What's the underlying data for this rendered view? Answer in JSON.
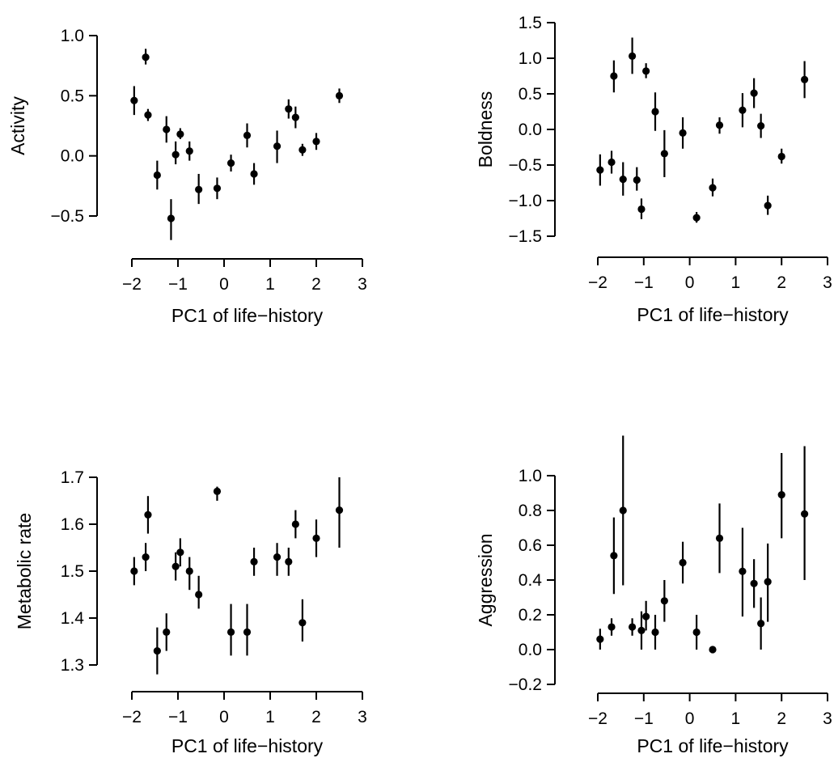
{
  "chart_data": [
    {
      "type": "scatter",
      "title": "",
      "xlabel": "PC1 of life−history",
      "ylabel": "Activity",
      "xlim": [
        -2,
        3
      ],
      "ylim": [
        -0.5,
        1.0
      ],
      "xticks": [
        "−2",
        "−1",
        "0",
        "1",
        "2",
        "3"
      ],
      "yticks": [
        "−0.5",
        "0.0",
        "0.5",
        "1.0"
      ],
      "grid": false,
      "points": [
        {
          "x": -1.95,
          "y": 0.46,
          "lo": 0.34,
          "hi": 0.58
        },
        {
          "x": -1.7,
          "y": 0.82,
          "lo": 0.76,
          "hi": 0.89
        },
        {
          "x": -1.65,
          "y": 0.34,
          "lo": 0.29,
          "hi": 0.39
        },
        {
          "x": -1.45,
          "y": -0.16,
          "lo": -0.28,
          "hi": -0.04
        },
        {
          "x": -1.25,
          "y": 0.22,
          "lo": 0.11,
          "hi": 0.33
        },
        {
          "x": -1.15,
          "y": -0.52,
          "lo": -0.7,
          "hi": -0.36
        },
        {
          "x": -1.05,
          "y": 0.01,
          "lo": -0.07,
          "hi": 0.12
        },
        {
          "x": -0.95,
          "y": 0.18,
          "lo": 0.14,
          "hi": 0.23
        },
        {
          "x": -0.75,
          "y": 0.04,
          "lo": -0.04,
          "hi": 0.12
        },
        {
          "x": -0.55,
          "y": -0.28,
          "lo": -0.4,
          "hi": -0.15
        },
        {
          "x": -0.15,
          "y": -0.27,
          "lo": -0.36,
          "hi": -0.18
        },
        {
          "x": 0.15,
          "y": -0.06,
          "lo": -0.13,
          "hi": 0.01
        },
        {
          "x": 0.5,
          "y": 0.17,
          "lo": 0.07,
          "hi": 0.27
        },
        {
          "x": 0.65,
          "y": -0.15,
          "lo": -0.24,
          "hi": -0.06
        },
        {
          "x": 1.15,
          "y": 0.08,
          "lo": -0.06,
          "hi": 0.21
        },
        {
          "x": 1.4,
          "y": 0.39,
          "lo": 0.31,
          "hi": 0.47
        },
        {
          "x": 1.55,
          "y": 0.32,
          "lo": 0.23,
          "hi": 0.41
        },
        {
          "x": 1.7,
          "y": 0.05,
          "lo": 0.0,
          "hi": 0.1
        },
        {
          "x": 2.0,
          "y": 0.12,
          "lo": 0.05,
          "hi": 0.19
        },
        {
          "x": 2.5,
          "y": 0.5,
          "lo": 0.44,
          "hi": 0.56
        }
      ]
    },
    {
      "type": "scatter",
      "title": "",
      "xlabel": "PC1 of life−history",
      "ylabel": "Boldness",
      "xlim": [
        -2,
        3
      ],
      "ylim": [
        -1.5,
        1.5
      ],
      "xticks": [
        "−2",
        "−1",
        "0",
        "1",
        "2",
        "3"
      ],
      "yticks": [
        "−1.5",
        "−1.0",
        "−0.5",
        "0.0",
        "0.5",
        "1.0",
        "1.5"
      ],
      "grid": false,
      "points": [
        {
          "x": -1.95,
          "y": -0.57,
          "lo": -0.79,
          "hi": -0.35
        },
        {
          "x": -1.7,
          "y": -0.46,
          "lo": -0.62,
          "hi": -0.3
        },
        {
          "x": -1.65,
          "y": 0.75,
          "lo": 0.52,
          "hi": 0.97
        },
        {
          "x": -1.45,
          "y": -0.7,
          "lo": -0.93,
          "hi": -0.46
        },
        {
          "x": -1.25,
          "y": 1.03,
          "lo": 0.78,
          "hi": 1.29
        },
        {
          "x": -1.15,
          "y": -0.71,
          "lo": -0.86,
          "hi": -0.53
        },
        {
          "x": -1.05,
          "y": -1.12,
          "lo": -1.26,
          "hi": -0.97
        },
        {
          "x": -0.95,
          "y": 0.82,
          "lo": 0.72,
          "hi": 0.93
        },
        {
          "x": -0.75,
          "y": 0.25,
          "lo": -0.02,
          "hi": 0.52
        },
        {
          "x": -0.55,
          "y": -0.34,
          "lo": -0.67,
          "hi": -0.01
        },
        {
          "x": -0.15,
          "y": -0.05,
          "lo": -0.27,
          "hi": 0.17
        },
        {
          "x": 0.15,
          "y": -1.24,
          "lo": -1.31,
          "hi": -1.16
        },
        {
          "x": 0.5,
          "y": -0.82,
          "lo": -0.94,
          "hi": -0.69
        },
        {
          "x": 0.65,
          "y": 0.06,
          "lo": -0.06,
          "hi": 0.17
        },
        {
          "x": 1.15,
          "y": 0.27,
          "lo": 0.03,
          "hi": 0.51
        },
        {
          "x": 1.4,
          "y": 0.51,
          "lo": 0.3,
          "hi": 0.72
        },
        {
          "x": 1.55,
          "y": 0.05,
          "lo": -0.12,
          "hi": 0.22
        },
        {
          "x": 1.7,
          "y": -1.07,
          "lo": -1.2,
          "hi": -0.93
        },
        {
          "x": 2.0,
          "y": -0.38,
          "lo": -0.48,
          "hi": -0.27
        },
        {
          "x": 2.5,
          "y": 0.7,
          "lo": 0.44,
          "hi": 0.96
        }
      ]
    },
    {
      "type": "scatter",
      "title": "",
      "xlabel": "PC1 of life−history",
      "ylabel": "Metabolic rate",
      "xlim": [
        -2,
        3
      ],
      "ylim": [
        1.3,
        1.7
      ],
      "xticks": [
        "−2",
        "−1",
        "0",
        "1",
        "2",
        "3"
      ],
      "yticks": [
        "1.3",
        "1.4",
        "1.5",
        "1.6",
        "1.7"
      ],
      "grid": false,
      "points": [
        {
          "x": -1.95,
          "y": 1.5,
          "lo": 1.47,
          "hi": 1.53
        },
        {
          "x": -1.7,
          "y": 1.53,
          "lo": 1.5,
          "hi": 1.56
        },
        {
          "x": -1.65,
          "y": 1.62,
          "lo": 1.58,
          "hi": 1.66
        },
        {
          "x": -1.45,
          "y": 1.33,
          "lo": 1.28,
          "hi": 1.38
        },
        {
          "x": -1.25,
          "y": 1.37,
          "lo": 1.33,
          "hi": 1.41
        },
        {
          "x": -1.05,
          "y": 1.51,
          "lo": 1.48,
          "hi": 1.54
        },
        {
          "x": -0.95,
          "y": 1.54,
          "lo": 1.51,
          "hi": 1.57
        },
        {
          "x": -0.75,
          "y": 1.5,
          "lo": 1.46,
          "hi": 1.53
        },
        {
          "x": -0.55,
          "y": 1.45,
          "lo": 1.42,
          "hi": 1.49
        },
        {
          "x": -0.15,
          "y": 1.67,
          "lo": 1.65,
          "hi": 1.68
        },
        {
          "x": 0.15,
          "y": 1.37,
          "lo": 1.32,
          "hi": 1.43
        },
        {
          "x": 0.5,
          "y": 1.37,
          "lo": 1.32,
          "hi": 1.43
        },
        {
          "x": 0.65,
          "y": 1.52,
          "lo": 1.49,
          "hi": 1.55
        },
        {
          "x": 1.15,
          "y": 1.53,
          "lo": 1.49,
          "hi": 1.56
        },
        {
          "x": 1.4,
          "y": 1.52,
          "lo": 1.49,
          "hi": 1.55
        },
        {
          "x": 1.55,
          "y": 1.6,
          "lo": 1.57,
          "hi": 1.63
        },
        {
          "x": 1.7,
          "y": 1.39,
          "lo": 1.35,
          "hi": 1.44
        },
        {
          "x": 2.0,
          "y": 1.57,
          "lo": 1.53,
          "hi": 1.61
        },
        {
          "x": 2.5,
          "y": 1.63,
          "lo": 1.55,
          "hi": 1.7
        }
      ]
    },
    {
      "type": "scatter",
      "title": "",
      "xlabel": "PC1 of life−history",
      "ylabel": "Aggression",
      "xlim": [
        -2,
        3
      ],
      "ylim": [
        -0.2,
        1.0
      ],
      "xticks": [
        "−2",
        "−1",
        "0",
        "1",
        "2",
        "3"
      ],
      "yticks": [
        "−0.2",
        "0.0",
        "0.2",
        "0.4",
        "0.6",
        "0.8",
        "1.0"
      ],
      "grid": false,
      "points": [
        {
          "x": -1.95,
          "y": 0.06,
          "lo": 0.0,
          "hi": 0.12
        },
        {
          "x": -1.7,
          "y": 0.13,
          "lo": 0.08,
          "hi": 0.18
        },
        {
          "x": -1.65,
          "y": 0.54,
          "lo": 0.32,
          "hi": 0.76
        },
        {
          "x": -1.45,
          "y": 0.8,
          "lo": 0.37,
          "hi": 1.23
        },
        {
          "x": -1.25,
          "y": 0.13,
          "lo": 0.08,
          "hi": 0.18
        },
        {
          "x": -1.05,
          "y": 0.11,
          "lo": 0.0,
          "hi": 0.22
        },
        {
          "x": -0.95,
          "y": 0.19,
          "lo": 0.11,
          "hi": 0.28
        },
        {
          "x": -0.75,
          "y": 0.1,
          "lo": 0.0,
          "hi": 0.2
        },
        {
          "x": -0.55,
          "y": 0.28,
          "lo": 0.16,
          "hi": 0.4
        },
        {
          "x": -0.15,
          "y": 0.5,
          "lo": 0.38,
          "hi": 0.62
        },
        {
          "x": 0.15,
          "y": 0.1,
          "lo": 0.0,
          "hi": 0.2
        },
        {
          "x": 0.5,
          "y": 0.0,
          "lo": 0.0,
          "hi": 0.0
        },
        {
          "x": 0.65,
          "y": 0.64,
          "lo": 0.44,
          "hi": 0.84
        },
        {
          "x": 1.15,
          "y": 0.45,
          "lo": 0.19,
          "hi": 0.7
        },
        {
          "x": 1.4,
          "y": 0.38,
          "lo": 0.24,
          "hi": 0.52
        },
        {
          "x": 1.55,
          "y": 0.15,
          "lo": 0.0,
          "hi": 0.3
        },
        {
          "x": 1.7,
          "y": 0.39,
          "lo": 0.16,
          "hi": 0.61
        },
        {
          "x": 2.0,
          "y": 0.89,
          "lo": 0.64,
          "hi": 1.13
        },
        {
          "x": 2.5,
          "y": 0.78,
          "lo": 0.4,
          "hi": 1.17
        }
      ]
    }
  ]
}
